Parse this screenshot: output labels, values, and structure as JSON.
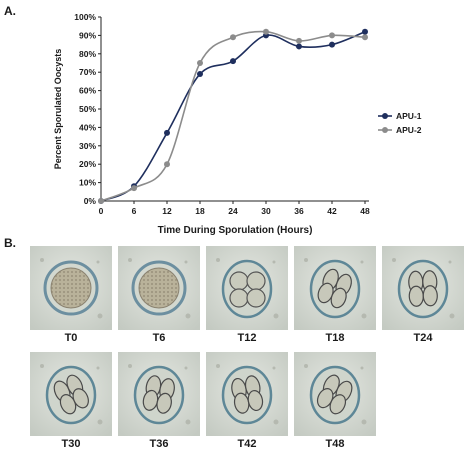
{
  "figure": {
    "panel_a_label": "A.",
    "panel_b_label": "B."
  },
  "chart_data": {
    "type": "line",
    "title": "",
    "xlabel": "Time During Sporulation (Hours)",
    "ylabel": "Percent Sporulated Oocysts",
    "x": [
      0,
      6,
      12,
      18,
      24,
      30,
      36,
      42,
      48
    ],
    "xticks": [
      "0",
      "6",
      "12",
      "18",
      "24",
      "30",
      "36",
      "42",
      "48"
    ],
    "yticks": [
      "0%",
      "10%",
      "20%",
      "30%",
      "40%",
      "50%",
      "60%",
      "70%",
      "80%",
      "90%",
      "100%"
    ],
    "xlim": [
      0,
      48
    ],
    "ylim": [
      0,
      100
    ],
    "grid": false,
    "legend_position": "right",
    "series": [
      {
        "name": "APU-1",
        "color": "#1f2f5e",
        "values": [
          0,
          8,
          37,
          69,
          76,
          90,
          84,
          85,
          92
        ]
      },
      {
        "name": "APU-2",
        "color": "#8c8c8c",
        "values": [
          0,
          7,
          20,
          75,
          89,
          92,
          87,
          90,
          89
        ]
      }
    ]
  },
  "micrographs": {
    "row1": [
      {
        "label": "T0",
        "stage": "unsporulated"
      },
      {
        "label": "T6",
        "stage": "unsporulated"
      },
      {
        "label": "T12",
        "stage": "sporoblasts"
      },
      {
        "label": "T18",
        "stage": "sporocysts"
      },
      {
        "label": "T24",
        "stage": "sporocysts"
      }
    ],
    "row2": [
      {
        "label": "T30",
        "stage": "sporulated"
      },
      {
        "label": "T36",
        "stage": "sporulated"
      },
      {
        "label": "T42",
        "stage": "sporulated"
      },
      {
        "label": "T48",
        "stage": "sporulated"
      }
    ]
  }
}
